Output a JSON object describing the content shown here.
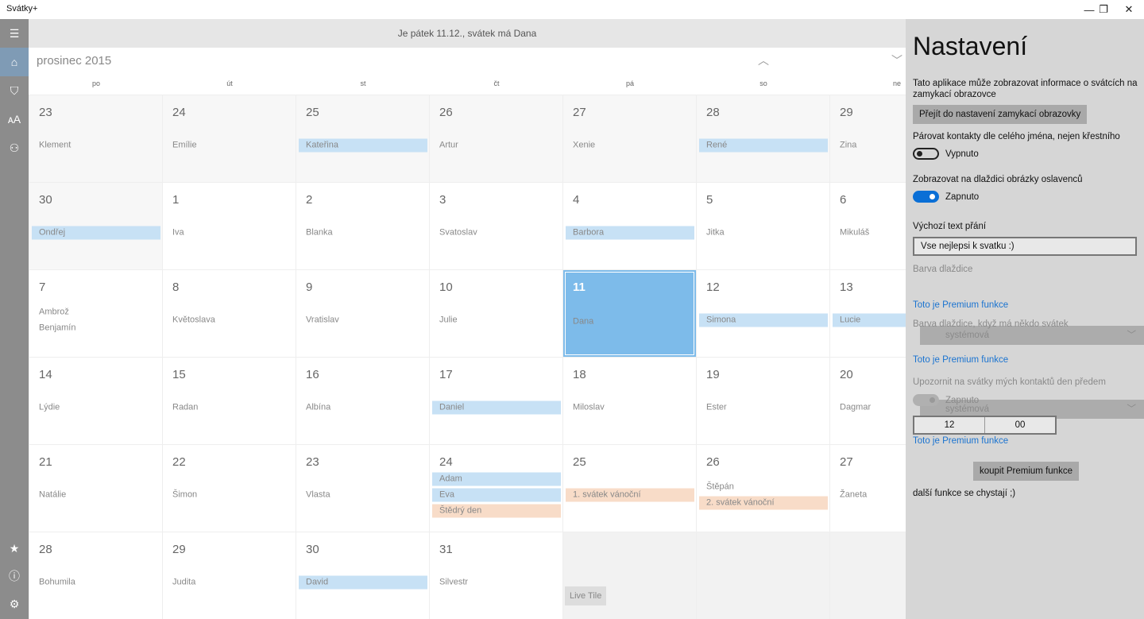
{
  "app_title": "Svátky+",
  "window_controls": [
    "—",
    "❐",
    "✕"
  ],
  "topbar_text": "Je pátek 11.12., svátek má Dana",
  "month_title": "prosinec 2015",
  "weekdays": [
    "po",
    "út",
    "st",
    "čt",
    "pá",
    "so",
    "ne"
  ],
  "sidebar": {
    "top": [
      {
        "icon": "hamburger-icon",
        "glyph": "☰"
      },
      {
        "icon": "home-icon",
        "glyph": "⌂",
        "active": true
      },
      {
        "icon": "shield-icon",
        "glyph": "⛉"
      },
      {
        "icon": "font-size-icon",
        "glyph": "ᴀA"
      },
      {
        "icon": "person-icon",
        "glyph": "⚇"
      }
    ],
    "bottom": [
      {
        "icon": "star-icon",
        "glyph": "★"
      },
      {
        "icon": "info-icon",
        "glyph": "ⓘ"
      },
      {
        "icon": "gear-icon",
        "glyph": "⚙"
      }
    ]
  },
  "colors": {
    "highlight": "#c7e1f5",
    "holiday": "#f8dcc8",
    "selected": "#7dbbea",
    "toggle_on": "#0a6fd6",
    "link": "#1a73d0"
  },
  "weeks": [
    [
      {
        "d": "23",
        "other": true,
        "n": [
          [
            "Klement",
            ""
          ]
        ]
      },
      {
        "d": "24",
        "other": true,
        "n": [
          [
            "Emílie",
            ""
          ]
        ]
      },
      {
        "d": "25",
        "other": true,
        "n": [
          [
            "Kateřina",
            "hl"
          ]
        ]
      },
      {
        "d": "26",
        "other": true,
        "n": [
          [
            "Artur",
            ""
          ]
        ]
      },
      {
        "d": "27",
        "other": true,
        "n": [
          [
            "Xenie",
            ""
          ]
        ]
      },
      {
        "d": "28",
        "other": true,
        "n": [
          [
            "René",
            "hl"
          ]
        ]
      },
      {
        "d": "29",
        "other": true,
        "n": [
          [
            "Zina",
            ""
          ]
        ]
      }
    ],
    [
      {
        "d": "30",
        "other": true,
        "n": [
          [
            "Ondřej",
            "hl"
          ]
        ]
      },
      {
        "d": "1",
        "n": [
          [
            "Iva",
            ""
          ]
        ]
      },
      {
        "d": "2",
        "n": [
          [
            "Blanka",
            ""
          ]
        ]
      },
      {
        "d": "3",
        "n": [
          [
            "Svatoslav",
            ""
          ]
        ]
      },
      {
        "d": "4",
        "n": [
          [
            "Barbora",
            "hl"
          ]
        ]
      },
      {
        "d": "5",
        "n": [
          [
            "Jitka",
            ""
          ]
        ]
      },
      {
        "d": "6",
        "n": [
          [
            "Mikuláš",
            ""
          ]
        ]
      }
    ],
    [
      {
        "d": "7",
        "n": [
          [
            "Ambrož",
            ""
          ],
          [
            "Benjamín",
            ""
          ]
        ]
      },
      {
        "d": "8",
        "n": [
          [
            "Květoslava",
            ""
          ]
        ]
      },
      {
        "d": "9",
        "n": [
          [
            "Vratislav",
            ""
          ]
        ]
      },
      {
        "d": "10",
        "n": [
          [
            "Julie",
            ""
          ]
        ]
      },
      {
        "d": "11",
        "sel": true,
        "n": [
          [
            "Dana",
            ""
          ]
        ]
      },
      {
        "d": "12",
        "n": [
          [
            "Simona",
            "hl"
          ]
        ]
      },
      {
        "d": "13",
        "n": [
          [
            "Lucie",
            "hl"
          ]
        ]
      }
    ],
    [
      {
        "d": "14",
        "n": [
          [
            "Lýdie",
            ""
          ]
        ]
      },
      {
        "d": "15",
        "n": [
          [
            "Radan",
            ""
          ]
        ]
      },
      {
        "d": "16",
        "n": [
          [
            "Albína",
            ""
          ]
        ]
      },
      {
        "d": "17",
        "n": [
          [
            "Daniel",
            "hl"
          ]
        ]
      },
      {
        "d": "18",
        "n": [
          [
            "Miloslav",
            ""
          ]
        ]
      },
      {
        "d": "19",
        "n": [
          [
            "Ester",
            ""
          ]
        ]
      },
      {
        "d": "20",
        "n": [
          [
            "Dagmar",
            ""
          ]
        ]
      }
    ],
    [
      {
        "d": "21",
        "n": [
          [
            "Natálie",
            ""
          ]
        ]
      },
      {
        "d": "22",
        "n": [
          [
            "Šimon",
            ""
          ]
        ]
      },
      {
        "d": "23",
        "n": [
          [
            "Vlasta",
            ""
          ]
        ]
      },
      {
        "d": "24",
        "n": [
          [
            "Adam",
            "hl"
          ],
          [
            "Eva",
            "hl"
          ],
          [
            "Štědrý den",
            "hol"
          ]
        ]
      },
      {
        "d": "25",
        "n": [
          [
            "1. svátek vánoční",
            "hol"
          ]
        ]
      },
      {
        "d": "26",
        "n": [
          [
            "Štěpán",
            ""
          ],
          [
            "2. svátek vánoční",
            "hol"
          ]
        ]
      },
      {
        "d": "27",
        "n": [
          [
            "Žaneta",
            ""
          ]
        ]
      }
    ],
    [
      {
        "d": "28",
        "n": [
          [
            "Bohumila",
            ""
          ]
        ]
      },
      {
        "d": "29",
        "n": [
          [
            "Judita",
            ""
          ]
        ]
      },
      {
        "d": "30",
        "n": [
          [
            "David",
            "hl"
          ]
        ]
      },
      {
        "d": "31",
        "n": [
          [
            "Silvestr",
            ""
          ]
        ]
      },
      {
        "empty": true
      },
      {
        "empty": true
      },
      {
        "empty": true
      }
    ]
  ],
  "live_tile_label": "Live Tile",
  "settings": {
    "title": "Nastavení",
    "lock_info": "Tato aplikace může zobrazovat informace o svátcích na zamykací obrazovce",
    "lock_button": "Přejít do nastavení zamykací obrazovky",
    "pair_label": "Párovat kontakty dle celého jména, nejen křestního",
    "pair_state": "Vypnuto",
    "pictures_label": "Zobrazovat na dlaždici obrázky oslavenců",
    "pictures_state": "Zapnuto",
    "wish_label": "Výchozí text přání",
    "wish_value": "Vse nejlepsi k svatku :)",
    "tile_color_label": "Barva dlaždice",
    "tile_color_value": "systémová",
    "premium_note": "Toto je Premium funkce",
    "tile_color_holiday_label": "Barva dlaždice, když má někdo svátek",
    "tile_color_holiday_value": "systémová",
    "notify_label": "Upozornit na svátky mých kontaktů den předem",
    "notify_state": "Zapnuto",
    "time_hour": "12",
    "time_minute": "00",
    "buy_button": "koupit Premium funkce",
    "more_soon": "další funkce se chystají ;)"
  }
}
